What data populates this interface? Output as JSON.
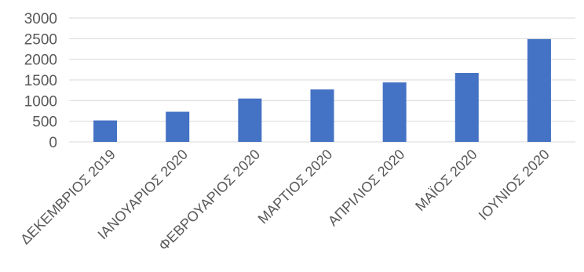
{
  "chart_data": {
    "type": "bar",
    "title": "",
    "xlabel": "",
    "ylabel": "",
    "categories": [
      "ΔΕΚΕΜΒΡΙΟΣ 2019",
      "ΙΑΝΟΥΑΡΙΟΣ 2020",
      "ΦΕΒΡΟΥΑΡΙΟΣ 2020",
      "ΜΑΡΤΙΟΣ 2020",
      "ΑΠΡΙΛΙΟΣ 2020",
      "ΜΑΪΟΣ 2020",
      "ΙΟΥΝΙΟΣ 2020"
    ],
    "values": [
      520,
      730,
      1050,
      1270,
      1440,
      1670,
      2490
    ],
    "ylim": [
      0,
      3000
    ],
    "yticks": [
      0,
      500,
      1000,
      1500,
      2000,
      2500,
      3000
    ],
    "ytick_labels": [
      "0",
      "500",
      "1000",
      "1500",
      "2000",
      "2500",
      "3000"
    ],
    "grid": true,
    "legend": "none",
    "bar_color": "#4472c4"
  }
}
